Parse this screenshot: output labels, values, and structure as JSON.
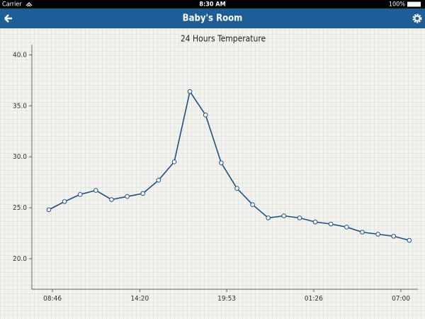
{
  "status_bar": {
    "carrier": "Carrier",
    "time": "8:30 AM",
    "battery": "100%"
  },
  "nav_bar": {
    "title": "Baby's Room"
  },
  "chart_data": {
    "type": "line",
    "title": "24 Hours Temperature",
    "x": [
      512,
      572,
      632,
      692,
      752,
      812,
      872,
      932,
      992,
      1052,
      1112,
      1172,
      1232,
      1292,
      1352,
      1412,
      1472,
      1532,
      1592,
      1652,
      1712,
      1772,
      1832,
      1892
    ],
    "values": [
      24.8,
      25.6,
      26.3,
      26.7,
      25.8,
      26.1,
      26.4,
      27.7,
      29.5,
      36.4,
      34.1,
      29.4,
      26.9,
      25.3,
      24.0,
      24.2,
      24.0,
      23.6,
      23.4,
      23.1,
      22.6,
      22.4,
      22.2,
      21.8
    ],
    "color": "#1b5284",
    "xlim": [
      447,
      1925
    ],
    "xticks": [
      {
        "value": 526,
        "label": "08:46"
      },
      {
        "value": 860,
        "label": "14:20"
      },
      {
        "value": 1193,
        "label": "19:53"
      },
      {
        "value": 1526,
        "label": "01:26"
      },
      {
        "value": 1860,
        "label": "07:00"
      }
    ],
    "ylim": [
      17,
      41
    ],
    "yticks": [
      {
        "value": 20,
        "label": "20.0"
      },
      {
        "value": 25,
        "label": "25.0"
      },
      {
        "value": 30,
        "label": "30.0"
      },
      {
        "value": 35,
        "label": "35.0"
      },
      {
        "value": 40,
        "label": "40.0"
      }
    ]
  }
}
